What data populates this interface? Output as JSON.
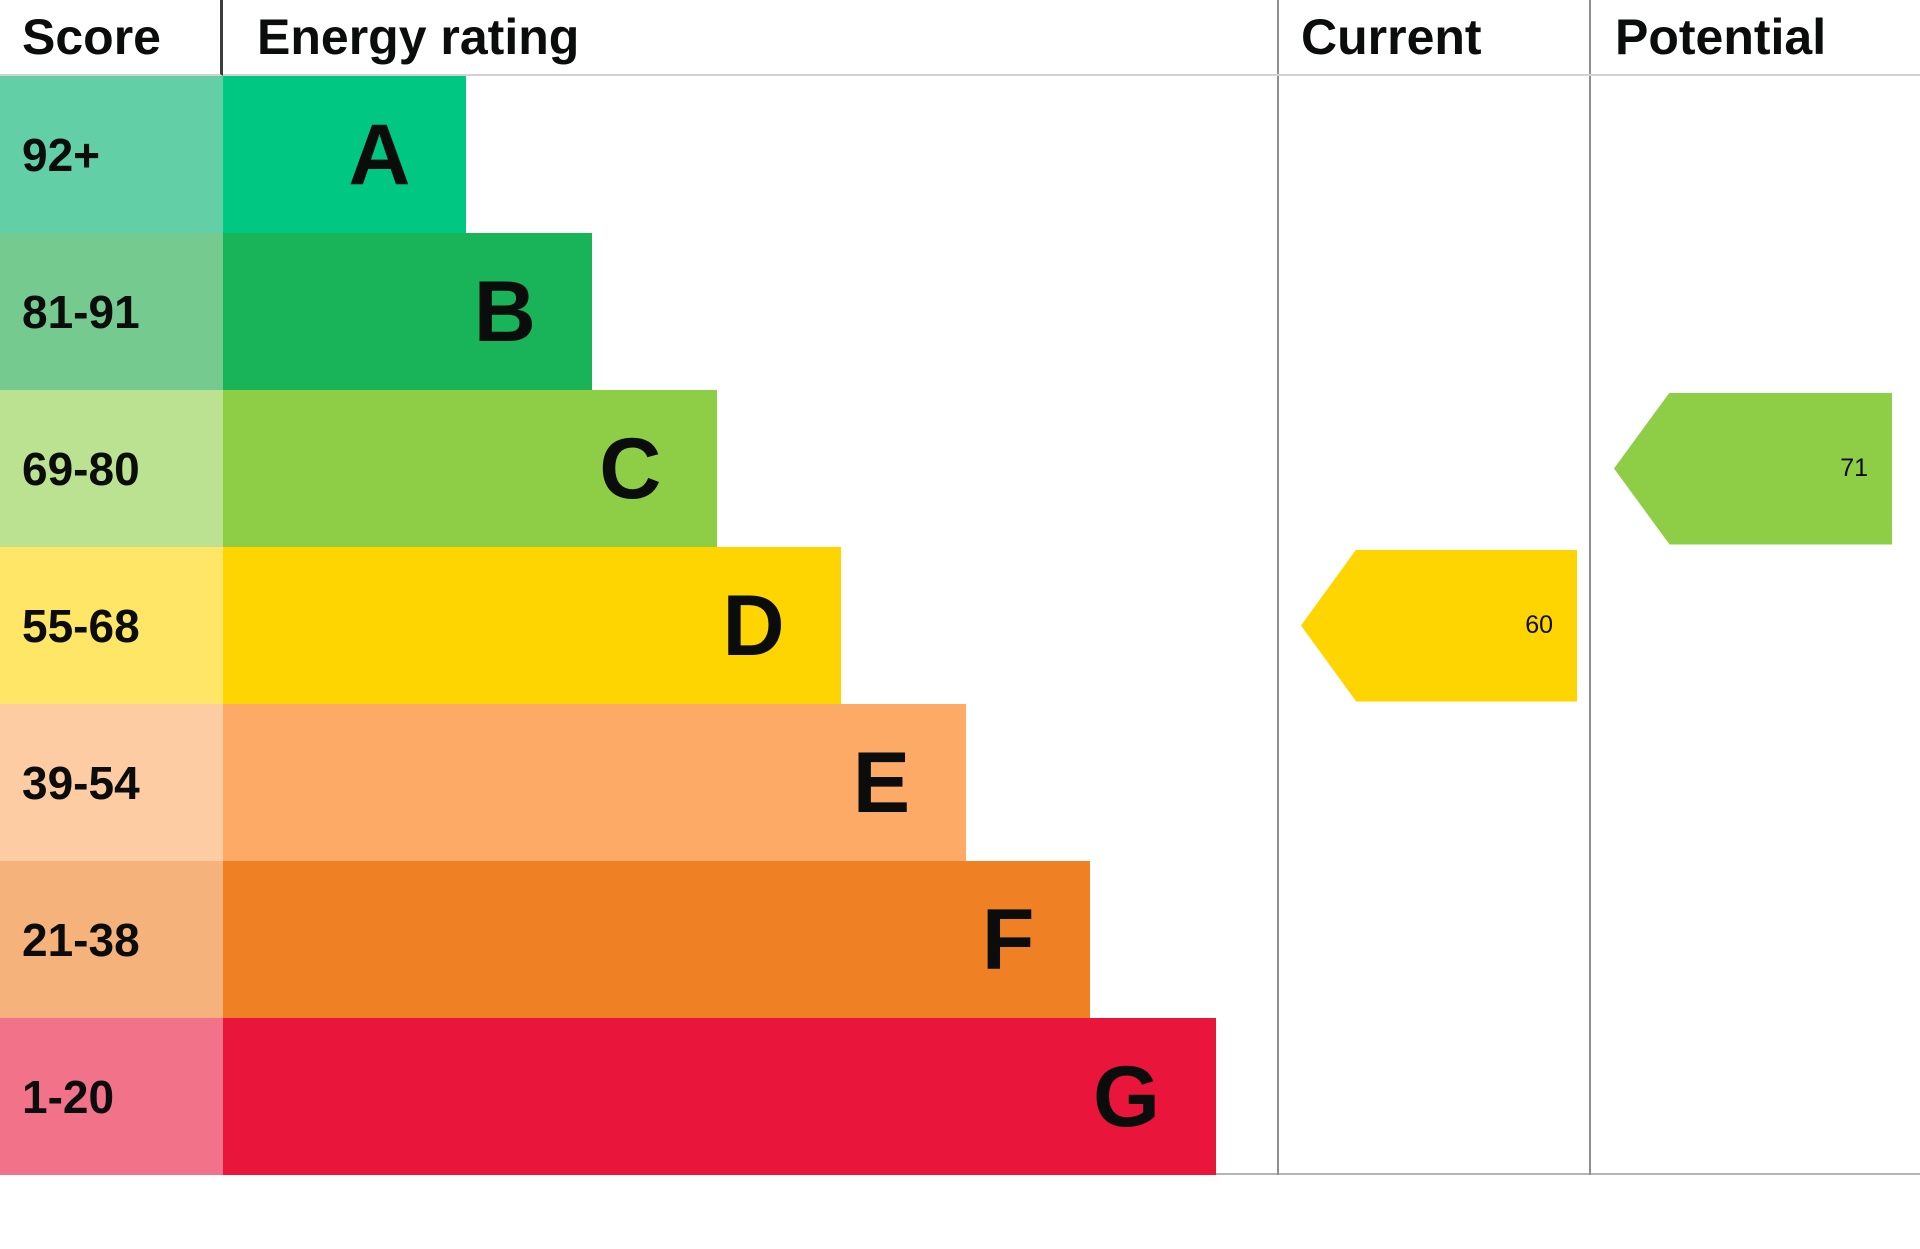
{
  "header": {
    "score": "Score",
    "rating": "Energy rating",
    "current": "Current",
    "potential": "Potential"
  },
  "chart_data": {
    "type": "bar",
    "title": "EPC energy efficiency rating chart",
    "bands": [
      {
        "letter": "A",
        "score": "92+",
        "color": "#00c781",
        "score_color": "#62cfa6",
        "width_pct": "23.1%"
      },
      {
        "letter": "B",
        "score": "81-91",
        "color": "#19b459",
        "score_color": "#75cb8f",
        "width_pct": "35.0%"
      },
      {
        "letter": "C",
        "score": "69-80",
        "color": "#8dce46",
        "score_color": "#bbe290",
        "width_pct": "46.9%"
      },
      {
        "letter": "D",
        "score": "55-68",
        "color": "#ffd500",
        "score_color": "#ffe666",
        "width_pct": "58.6%"
      },
      {
        "letter": "E",
        "score": "39-54",
        "color": "#fcaa65",
        "score_color": "#fdcca3",
        "width_pct": "70.5%"
      },
      {
        "letter": "F",
        "score": "21-38",
        "color": "#ef8023",
        "score_color": "#f5b37b",
        "width_pct": "82.3%"
      },
      {
        "letter": "G",
        "score": "1-20",
        "color": "#e9153b",
        "score_color": "#f27389",
        "width_pct": "94.2%"
      }
    ],
    "current": {
      "value": 60,
      "band": "D",
      "color": "#ffd500"
    },
    "potential": {
      "value": 71,
      "band": "C",
      "color": "#8dce46"
    }
  }
}
